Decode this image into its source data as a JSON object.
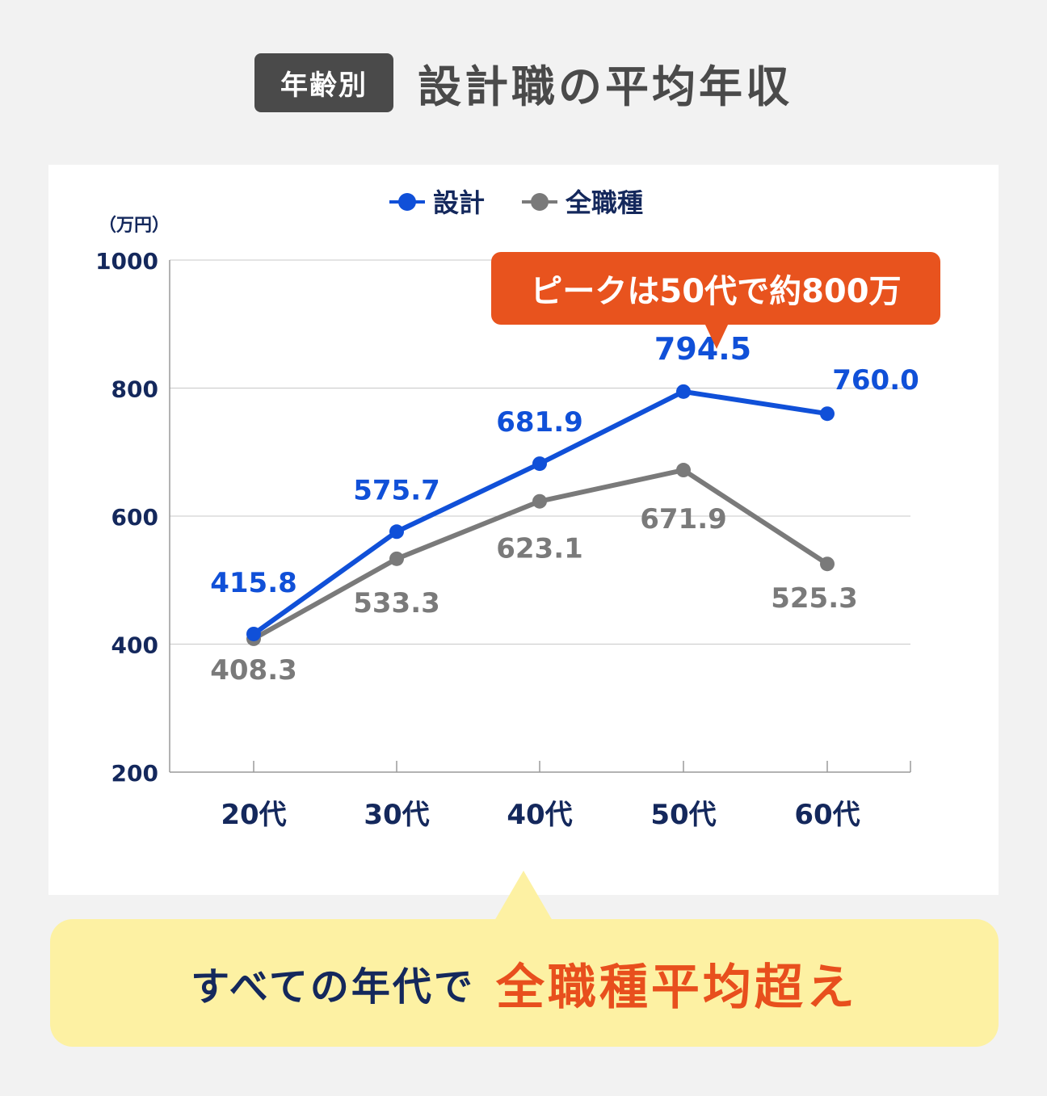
{
  "header": {
    "badge": "年齢別",
    "title": "設計職の平均年収"
  },
  "colors": {
    "design": "#1050d8",
    "all": "#7a7a7a",
    "axis_text": "#14285c",
    "peak": "#e8531e"
  },
  "chart_data": {
    "type": "line",
    "categories": [
      "20代",
      "30代",
      "40代",
      "50代",
      "60代"
    ],
    "series": [
      {
        "name": "設計",
        "values": [
          415.8,
          575.7,
          681.9,
          794.5,
          760.0
        ],
        "labels": [
          "415.8",
          "575.7",
          "681.9",
          "794.5",
          "760.0"
        ]
      },
      {
        "name": "全職種",
        "values": [
          408.3,
          533.3,
          623.1,
          671.9,
          525.3
        ],
        "labels": [
          "408.3",
          "533.3",
          "623.1",
          "671.9",
          "525.3"
        ]
      }
    ],
    "yunit": "（万円）",
    "yticks": [
      "200",
      "400",
      "600",
      "800",
      "1000"
    ],
    "ylim": [
      200,
      1000
    ],
    "grid": true,
    "legend": "top",
    "annotation": "ピークは50代で約800万"
  },
  "callout": {
    "text_a": "すべての年代で",
    "text_b": "全職種平均超え"
  }
}
